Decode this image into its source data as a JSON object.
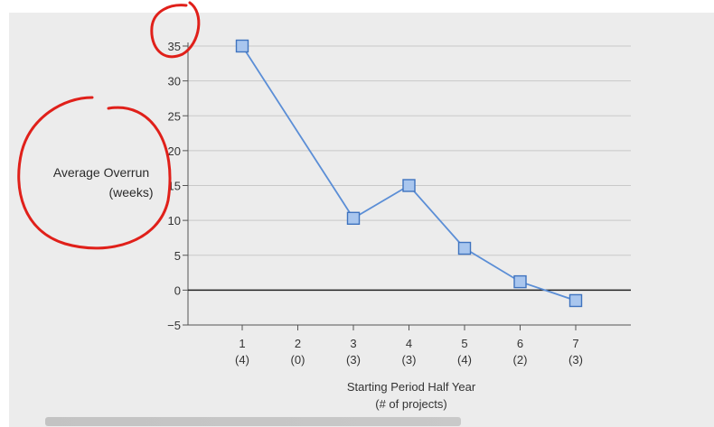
{
  "chart_data": {
    "type": "line",
    "ylabel": [
      "Average Overrun",
      "(weeks)"
    ],
    "xlabel": [
      "Starting Period Half Year",
      "(# of projects)"
    ],
    "y_ticks": [
      35,
      30,
      25,
      20,
      15,
      10,
      5,
      0,
      -5
    ],
    "y_tick_labels": [
      "35",
      "30",
      "25",
      "20",
      "15",
      "10",
      "5",
      "0",
      "−5"
    ],
    "ylim": [
      -5,
      35
    ],
    "x_ticks": [
      1,
      2,
      3,
      4,
      5,
      6,
      7
    ],
    "x_tick_labels": [
      "1",
      "2",
      "3",
      "4",
      "5",
      "6",
      "7"
    ],
    "x_tick_sublabels": [
      "(4)",
      "(0)",
      "(3)",
      "(3)",
      "(4)",
      "(2)",
      "(3)"
    ],
    "xlim": [
      0,
      8
    ],
    "grid": true,
    "zero_line": true,
    "series": [
      {
        "x": [
          1,
          3,
          4,
          5,
          6,
          7
        ],
        "values": [
          35,
          10.3,
          15,
          6,
          1.2,
          -1.5
        ],
        "color": "#5b8ed6",
        "marker": "square",
        "marker_fill": "#a9c6ee"
      }
    ]
  },
  "annotations": {
    "circle_color": "#e0201a",
    "circles": [
      "around 35 tick",
      "around y-axis label"
    ]
  }
}
